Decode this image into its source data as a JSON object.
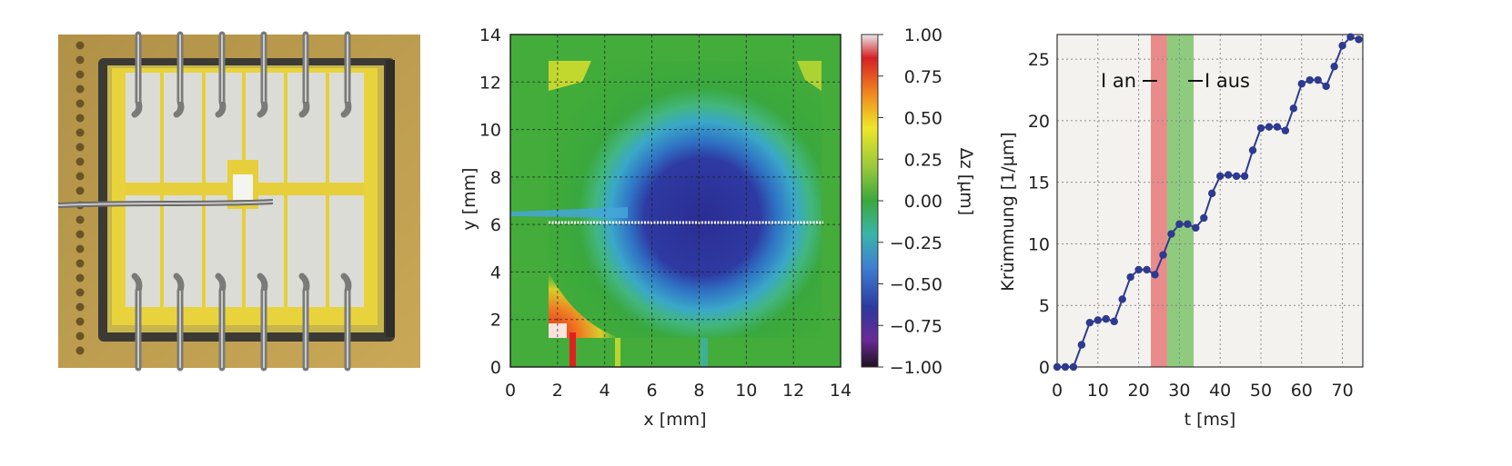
{
  "photo": {
    "description_icon": "sensor-chip-photo"
  },
  "heatmap": {
    "xlabel": "x [mm]",
    "ylabel": "y [mm]",
    "xticks": [
      "0",
      "2",
      "4",
      "6",
      "8",
      "10",
      "12",
      "14"
    ],
    "yticks": [
      "0",
      "2",
      "4",
      "6",
      "8",
      "10",
      "12",
      "14"
    ],
    "colorbar_label": "Δz [µm]",
    "colorbar_ticks": [
      "1.00",
      "0.75",
      "0.50",
      "0.25",
      "0.00",
      "−0.25",
      "−0.50",
      "−0.75",
      "−1.00"
    ]
  },
  "curvature": {
    "xlabel": "t [ms]",
    "ylabel": "Krümmung [1/µm]",
    "xticks": [
      "0",
      "10",
      "20",
      "30",
      "40",
      "50",
      "60",
      "70"
    ],
    "yticks": [
      "0",
      "5",
      "10",
      "15",
      "20",
      "25"
    ],
    "label_on": "I an",
    "label_off": "I aus"
  },
  "chart_data": [
    {
      "type": "heatmap",
      "title": "",
      "xlabel": "x [mm]",
      "ylabel": "y [mm]",
      "xlim": [
        0,
        14
      ],
      "ylim": [
        0,
        14
      ],
      "colorbar": {
        "label": "Δz [µm]",
        "range": [
          -1.0,
          1.0
        ],
        "ticks": [
          1.0,
          0.75,
          0.5,
          0.25,
          0.0,
          -0.25,
          -0.5,
          -0.75,
          -1.0
        ]
      },
      "grid": true,
      "colors": {
        "high": "#d01f1f",
        "mid": "#3aa23a",
        "low": "#2c2e8f"
      }
    },
    {
      "type": "line",
      "title": "",
      "xlabel": "t [ms]",
      "ylabel": "Krümmung [1/µm]",
      "xlim": [
        0,
        75
      ],
      "ylim": [
        0,
        27
      ],
      "grid": true,
      "bands": [
        {
          "label": "I an",
          "x": [
            23,
            27
          ],
          "color": "#e06060"
        },
        {
          "label": "I aus",
          "x": [
            27,
            33.5
          ],
          "color": "#66bb55"
        }
      ],
      "series": [
        {
          "color": "#2e3a8f",
          "x": [
            0,
            2,
            4,
            6,
            8,
            10,
            12,
            14,
            16,
            18,
            20,
            22,
            24,
            26,
            28,
            30,
            32,
            34,
            36,
            38,
            40,
            42,
            44,
            46,
            48,
            50,
            52,
            54,
            56,
            58,
            60,
            62,
            64,
            66,
            68,
            70,
            72,
            74
          ],
          "y": [
            0,
            0,
            0,
            1.8,
            3.6,
            3.8,
            3.9,
            3.7,
            5.5,
            7.3,
            7.9,
            7.9,
            7.5,
            9.1,
            10.8,
            11.6,
            11.6,
            11.3,
            12.1,
            14.1,
            15.5,
            15.6,
            15.5,
            15.5,
            17.6,
            19.4,
            19.5,
            19.5,
            19.2,
            21.0,
            23.0,
            23.3,
            23.3,
            22.8,
            24.4,
            26.1,
            26.8,
            26.6
          ]
        }
      ]
    }
  ]
}
